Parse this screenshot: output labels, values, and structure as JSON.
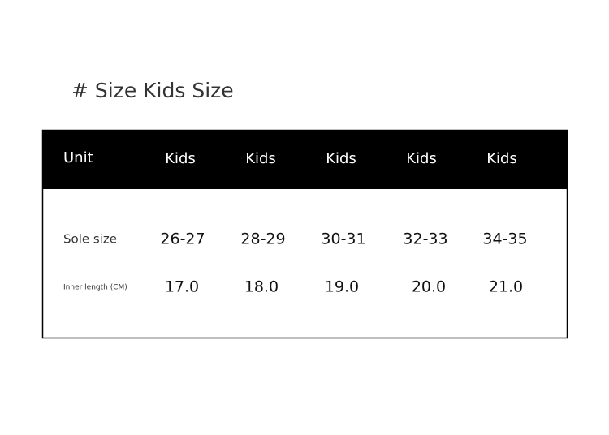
{
  "title": "# Size Kids Size",
  "table": {
    "header": [
      "Unit",
      "Kids",
      "Kids",
      "Kids",
      "Kids",
      "Kids"
    ],
    "rows": [
      [
        "Sole size",
        "26-27",
        "28-29",
        "30-31",
        "32-33",
        "34-35"
      ],
      [
        "Inner length (CM)",
        "17.0",
        "18.0",
        "19.0",
        "20.0",
        "21.0"
      ]
    ]
  }
}
